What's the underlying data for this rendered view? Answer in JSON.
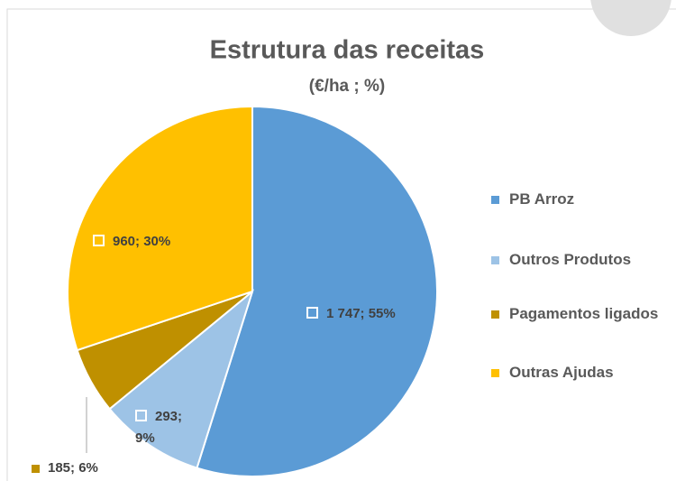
{
  "chart_data": {
    "type": "pie",
    "title": "Estrutura das receitas",
    "subtitle": "(€/ha ; %)",
    "categories": [
      "PB Arroz",
      "Outros Produtos",
      "Pagamentos ligados",
      "Outras Ajudas"
    ],
    "values": [
      1747,
      293,
      185,
      960
    ],
    "value_labels": [
      "1 747; 55%",
      "293; 9%",
      "185; 6%",
      "960; 30%"
    ],
    "colors": [
      "#5b9bd5",
      "#9dc3e6",
      "#bf9000",
      "#ffc000"
    ],
    "legend": "right"
  }
}
